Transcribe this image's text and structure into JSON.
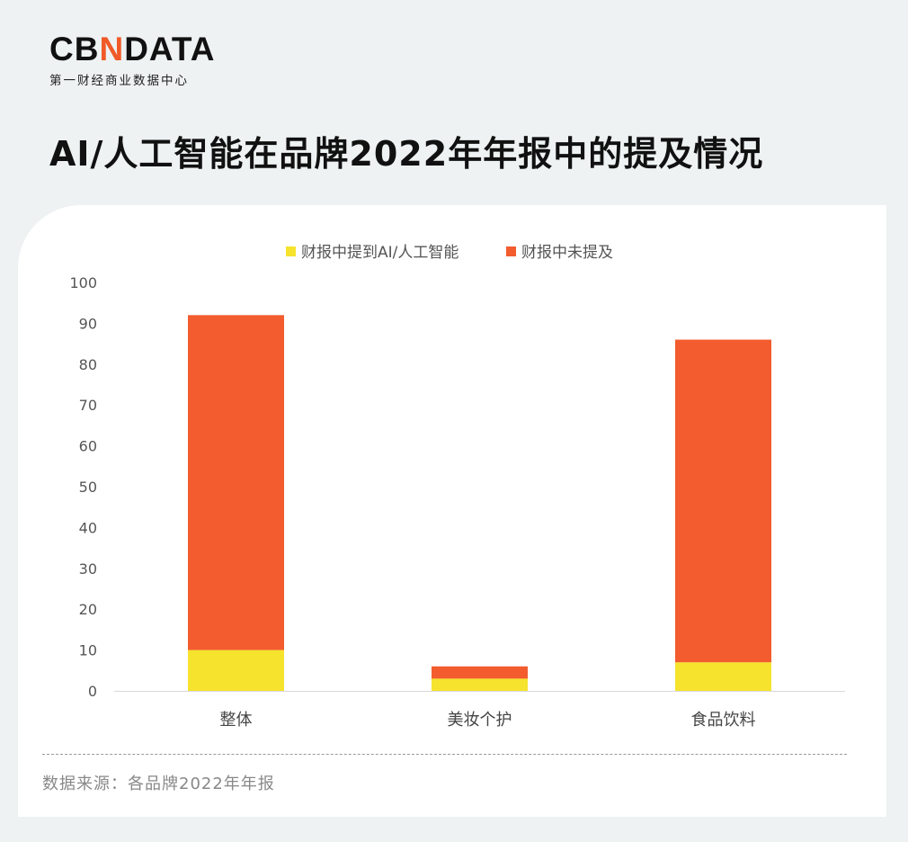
{
  "logo": {
    "text_pre": "CB",
    "text_n": "N",
    "text_post": "DATA",
    "subtitle": "第一财经商业数据中心"
  },
  "title": "AI/人工智能在品牌2022年年报中的提及情况",
  "source": "数据来源：各品牌2022年年报",
  "colors": {
    "ai": "#f5e32e",
    "not": "#f25c2e"
  },
  "chart_data": {
    "type": "bar",
    "stacked": true,
    "title": "AI/人工智能在品牌2022年年报中的提及情况",
    "categories": [
      "整体",
      "美妆个护",
      "食品饮料"
    ],
    "series": [
      {
        "name": "财报中提到AI/人工智能",
        "values": [
          10,
          3,
          7
        ],
        "color": "#f5e32e"
      },
      {
        "name": "财报中未提及",
        "values": [
          82,
          3,
          79
        ],
        "color": "#f25c2e"
      }
    ],
    "yticks": [
      "0",
      "10",
      "20",
      "30",
      "40",
      "50",
      "60",
      "70",
      "80",
      "90",
      "100"
    ],
    "ylim": [
      0,
      100
    ],
    "xlabel": "",
    "ylabel": "",
    "legend": "top-center",
    "grid": false
  }
}
